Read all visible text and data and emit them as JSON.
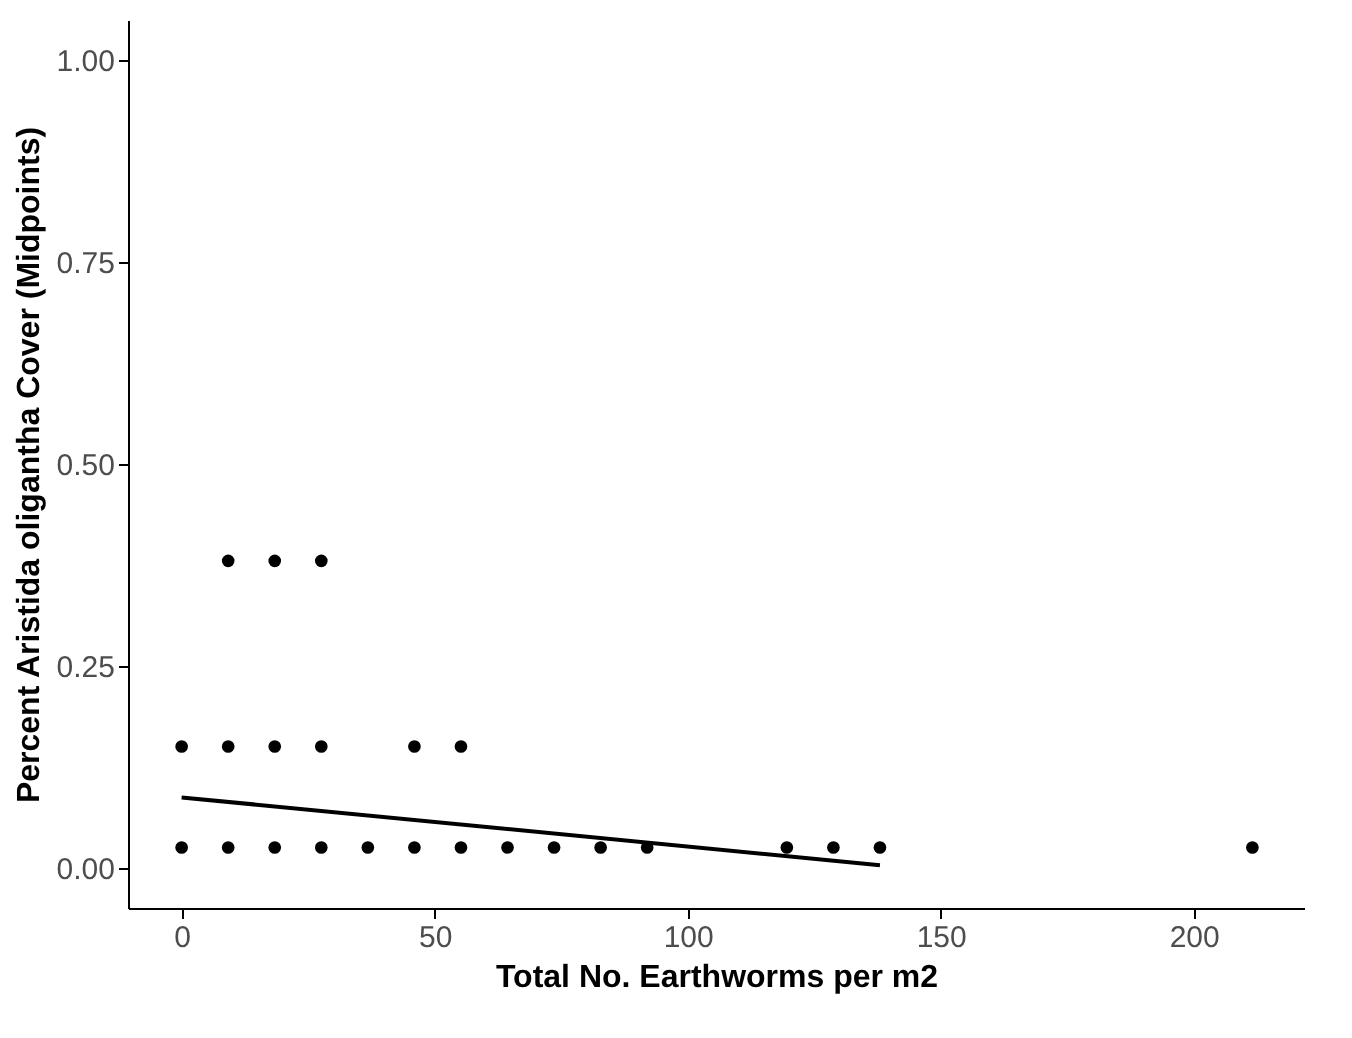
{
  "chart_data": {
    "type": "scatter",
    "xlabel": "Total No. Earthworms per m2",
    "ylabel": "Percent Aristida oligantha Cover (Midpoints)",
    "xlim": [
      -10.6,
      221.8
    ],
    "ylim": [
      -0.05,
      1.05
    ],
    "xticks": [
      0,
      50,
      100,
      150,
      200
    ],
    "yticks": [
      {
        "value": 0,
        "label": "0.00"
      },
      {
        "value": 0.25,
        "label": "0.25"
      },
      {
        "value": 0.5,
        "label": "0.50"
      },
      {
        "value": 0.75,
        "label": "0.75"
      },
      {
        "value": 1,
        "label": "1.00"
      }
    ],
    "grid": false,
    "series": [
      {
        "color": "#000000",
        "marker": "circle",
        "x": [
          0,
          9.2,
          18.4,
          27.6,
          36.8,
          46,
          55.2,
          64.4,
          73.6,
          82.8,
          92,
          119.6,
          128.8,
          138,
          211.6,
          0,
          9.2,
          18.4,
          27.6,
          46,
          55.2,
          9.2,
          18.4,
          27.6
        ],
        "values": [
          0.025,
          0.025,
          0.025,
          0.025,
          0.025,
          0.025,
          0.025,
          0.025,
          0.025,
          0.025,
          0.025,
          0.025,
          0.025,
          0.025,
          0.025,
          0.15,
          0.15,
          0.15,
          0.15,
          0.15,
          0.15,
          0.38,
          0.38,
          0.38
        ]
      },
      {
        "type": "line",
        "color": "#000000",
        "line_style": "solid",
        "x": [
          0,
          138
        ],
        "values": [
          0.087,
          0.003
        ]
      }
    ]
  }
}
